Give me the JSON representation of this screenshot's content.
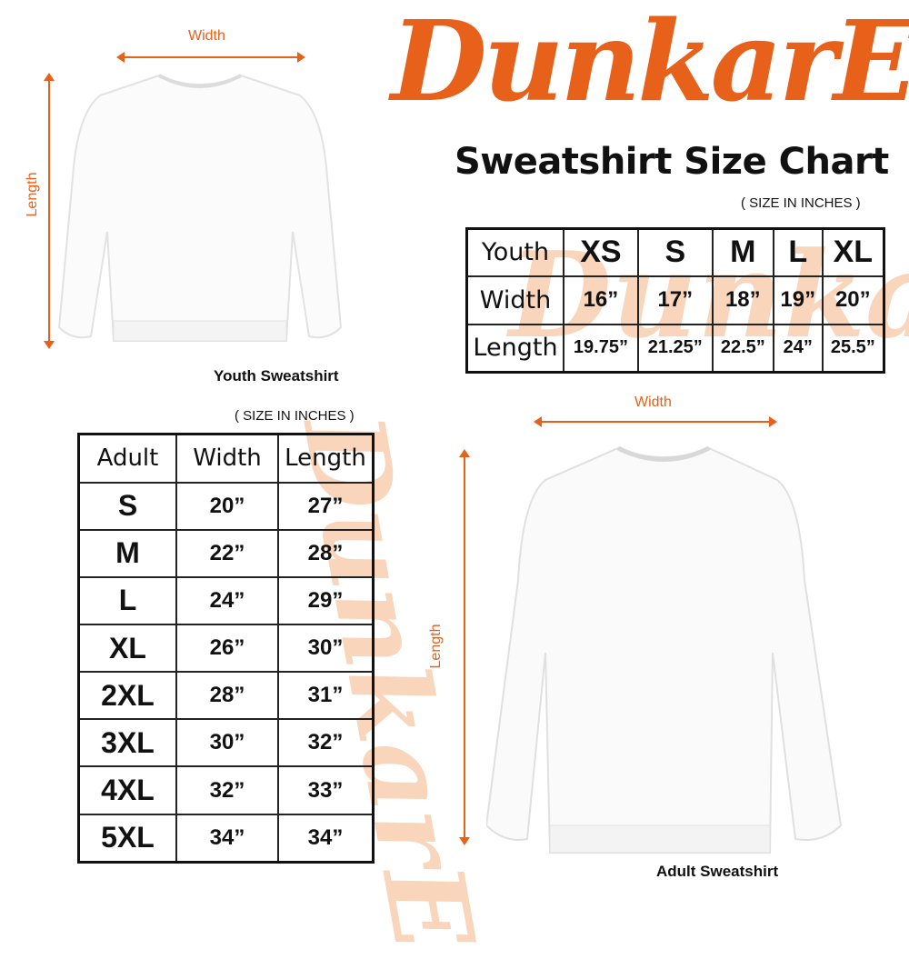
{
  "brand": {
    "logo_text": "DunkarE",
    "accent_color": "#E8611A",
    "watermark_color": "#F7C7A6"
  },
  "title": "Sweatshirt Size Chart",
  "youth": {
    "width_label": "Width",
    "length_label": "Length",
    "caption": "Youth Sweatshirt",
    "units_note": "( SIZE IN INCHES )",
    "table": {
      "header": [
        "Youth",
        "XS",
        "S",
        "M",
        "L",
        "XL"
      ],
      "rows": [
        [
          "Width",
          "16”",
          "17”",
          "18”",
          "19”",
          "20”"
        ],
        [
          "Length",
          "19.75”",
          "21.25”",
          "22.5”",
          "24”",
          "25.5”"
        ]
      ]
    }
  },
  "adult": {
    "width_label": "Width",
    "length_label": "Length",
    "caption": "Adult Sweatshirt",
    "units_note": "( SIZE IN INCHES )",
    "table": {
      "header": [
        "Adult",
        "Width",
        "Length"
      ],
      "rows": [
        [
          "S",
          "20”",
          "27”"
        ],
        [
          "M",
          "22”",
          "28”"
        ],
        [
          "L",
          "24”",
          "29”"
        ],
        [
          "XL",
          "26”",
          "30”"
        ],
        [
          "2XL",
          "28”",
          "31”"
        ],
        [
          "3XL",
          "30”",
          "32”"
        ],
        [
          "4XL",
          "32”",
          "33”"
        ],
        [
          "5XL",
          "34”",
          "34”"
        ]
      ]
    }
  }
}
